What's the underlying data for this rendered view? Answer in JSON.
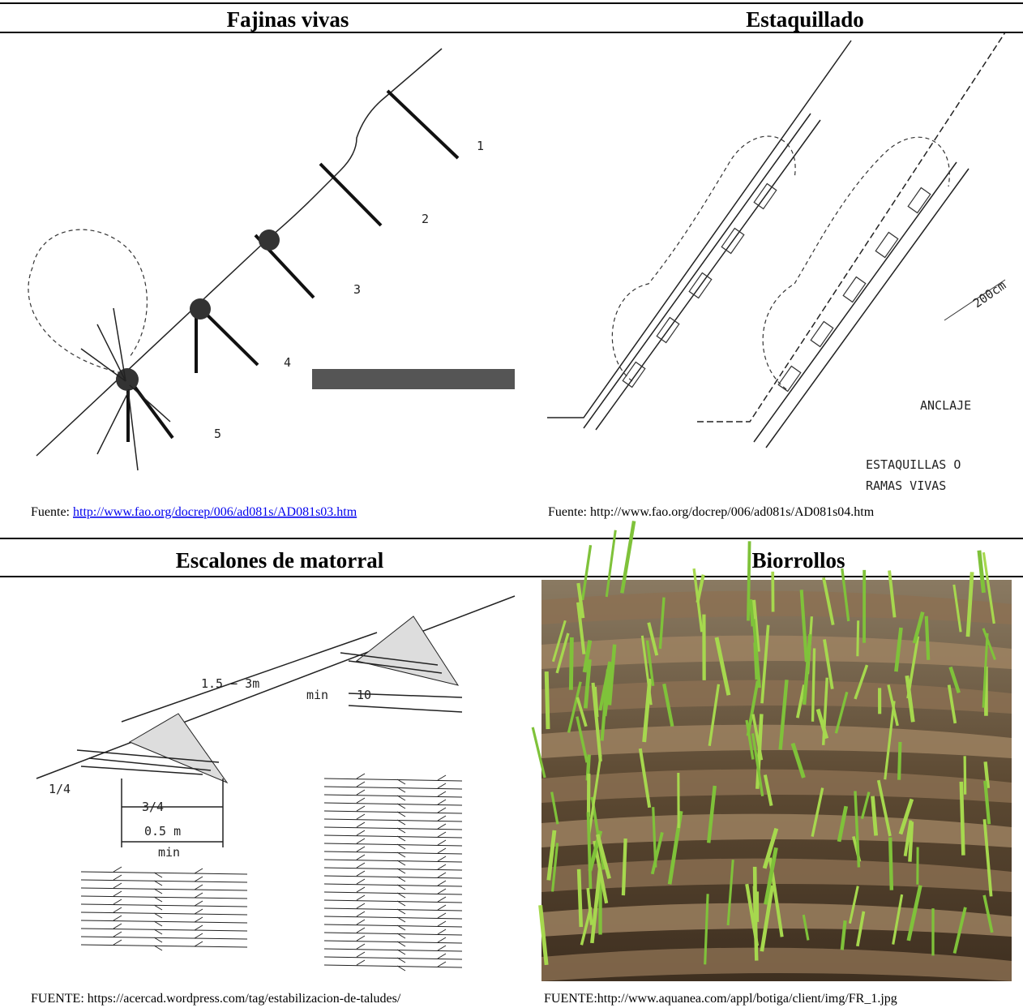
{
  "cells": [
    {
      "title": "Fajinas vivas",
      "labels": [
        "1",
        "2",
        "3",
        "4",
        "5"
      ],
      "source": {
        "prefix": "Fuente: ",
        "link": "http://www.fao.org/docrep/006/ad081s/AD081s03.htm"
      }
    },
    {
      "title": "Estaquillado",
      "labels": [
        "200cm",
        "ANCLAJE",
        "ESTAQUILLAS O",
        "RAMAS VIVAS"
      ],
      "source": "Fuente: http://www.fao.org/docrep/006/ad081s/AD081s04.htm"
    },
    {
      "title": "Escalones de matorral",
      "labels": [
        "1.5 − 3m",
        "min",
        "10",
        "1/4",
        "3/4",
        "0.5 m",
        "min"
      ],
      "source": "FUENTE: https://acercad.wordpress.com/tag/estabilizacion-de-taludes/"
    },
    {
      "title": "Biorrollos",
      "source": "FUENTE:http://www.aquanea.com/appl/botiga/client/img/FR_1.jpg"
    }
  ]
}
